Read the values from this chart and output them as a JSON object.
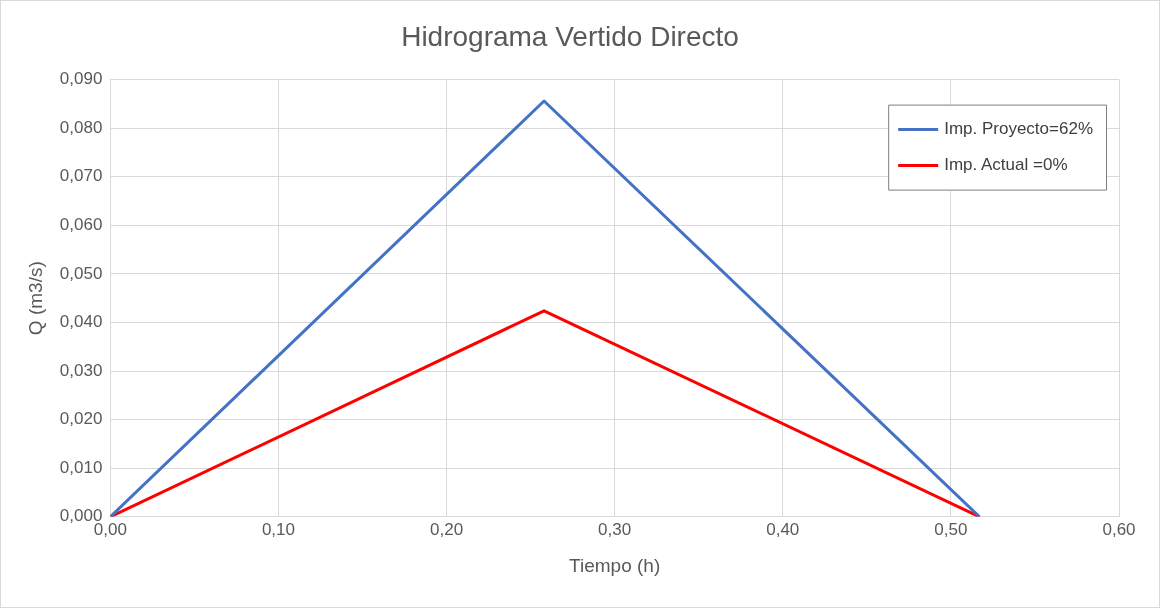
{
  "chart_data": {
    "type": "line",
    "title": "Hidrograma Vertido Directo",
    "xlabel": "Tiempo (h)",
    "ylabel": "Q (m3/s)",
    "series": [
      {
        "name": "Imp. Proyecto=62%",
        "color": "#4472c4",
        "x": [
          0,
          0.258,
          0.517
        ],
        "values": [
          0,
          0.0856,
          0
        ]
      },
      {
        "name": "Imp. Actual =0%",
        "color": "#ff0000",
        "x": [
          0,
          0.258,
          0.517
        ],
        "values": [
          0,
          0.0424,
          0
        ]
      }
    ],
    "xlim": [
      0,
      0.6
    ],
    "xticks": [
      {
        "value": 0,
        "label": "0,00"
      },
      {
        "value": 0.1,
        "label": "0,10"
      },
      {
        "value": 0.2,
        "label": "0,20"
      },
      {
        "value": 0.3,
        "label": "0,30"
      },
      {
        "value": 0.4,
        "label": "0,40"
      },
      {
        "value": 0.5,
        "label": "0,50"
      },
      {
        "value": 0.6,
        "label": "0,60"
      }
    ],
    "ylim": [
      0,
      0.09
    ],
    "yticks": [
      {
        "value": 0,
        "label": "0,000"
      },
      {
        "value": 0.01,
        "label": "0,010"
      },
      {
        "value": 0.02,
        "label": "0,020"
      },
      {
        "value": 0.03,
        "label": "0,030"
      },
      {
        "value": 0.04,
        "label": "0,040"
      },
      {
        "value": 0.05,
        "label": "0,050"
      },
      {
        "value": 0.06,
        "label": "0,060"
      },
      {
        "value": 0.07,
        "label": "0,070"
      },
      {
        "value": 0.08,
        "label": "0,080"
      },
      {
        "value": 0.09,
        "label": "0,090"
      }
    ],
    "grid": true,
    "legend": "top right",
    "marker": "none",
    "line_style": "solid"
  }
}
